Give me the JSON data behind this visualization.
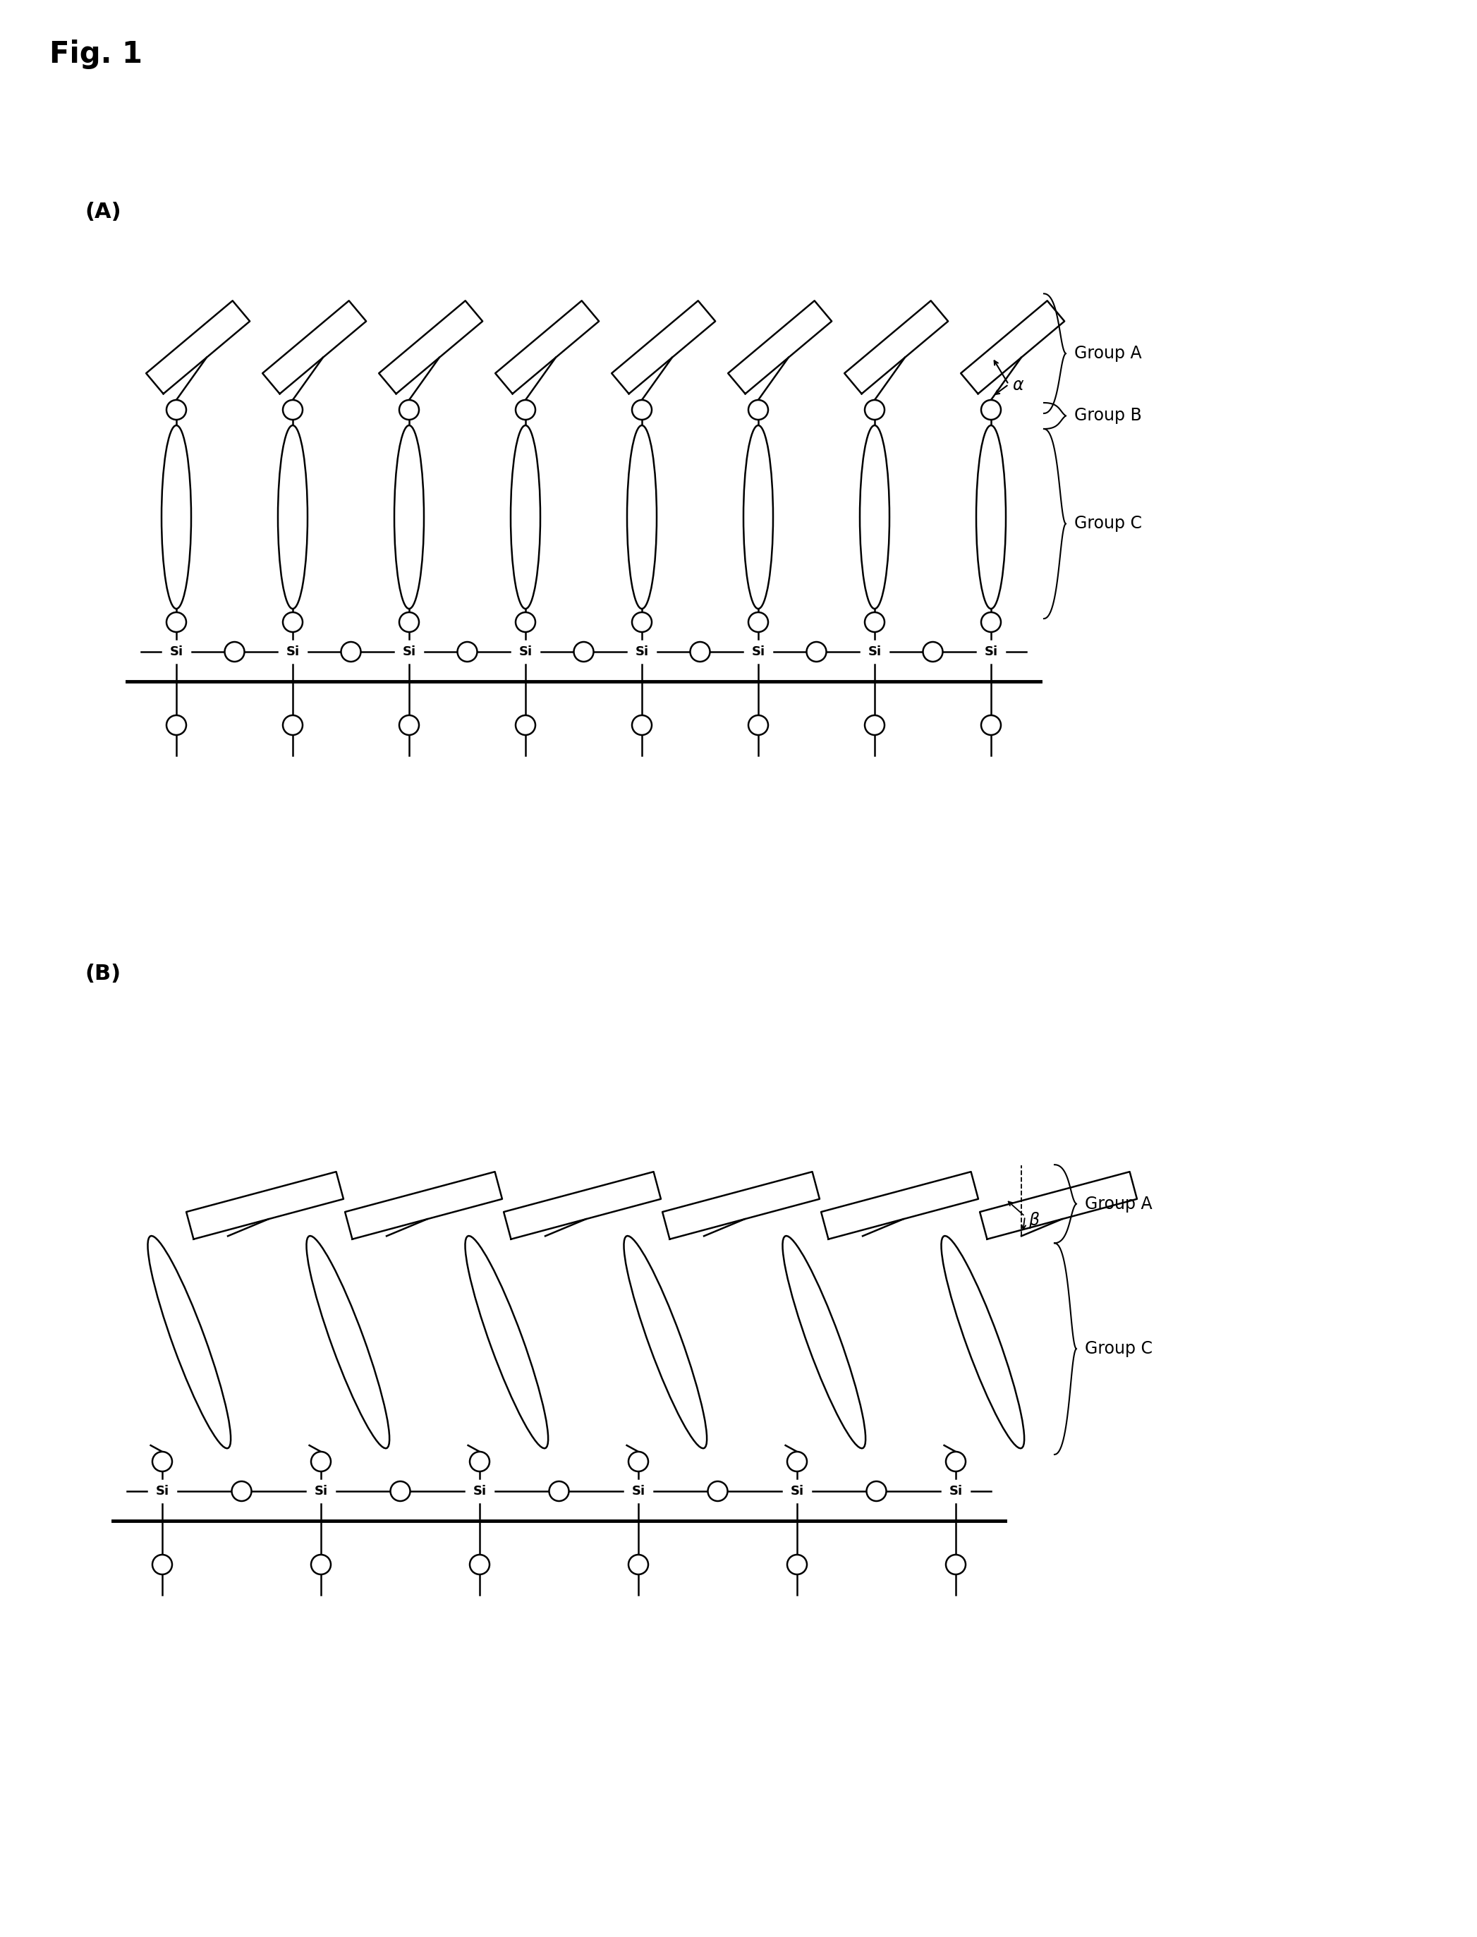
{
  "fig_title": "Fig. 1",
  "panel_A_label": "(A)",
  "panel_B_label": "(B)",
  "background_color": "#ffffff",
  "line_color": "#000000",
  "group_A_label": "Group A",
  "group_B_label": "Group B",
  "group_C_label": "Group C",
  "alpha_label": "α",
  "beta_label": "β"
}
